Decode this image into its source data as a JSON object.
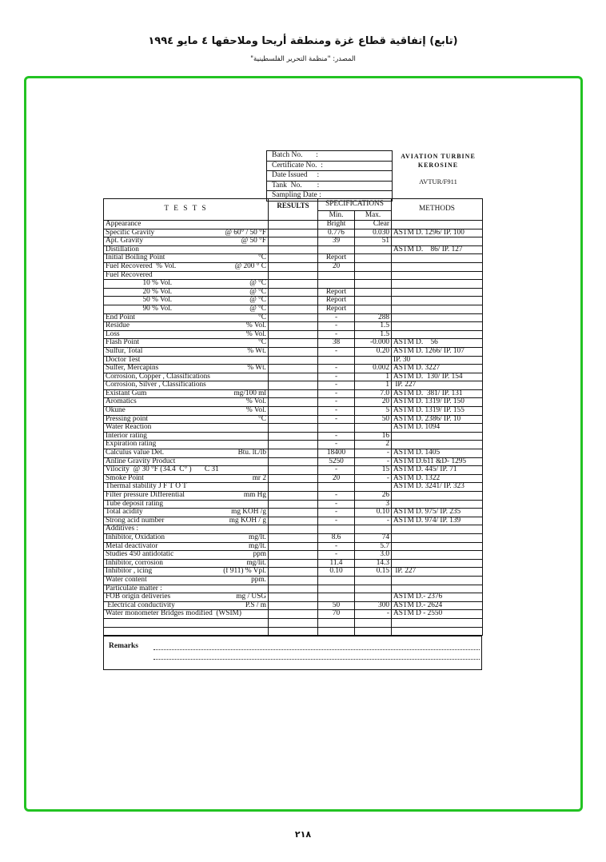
{
  "header": {
    "title": "(تابع) إتفاقية قطاع غزة ومنطقة أريحا وملاحقها ٤ مايو ١٩٩٤",
    "source": "المصدر: \"منظمة التحرير الفلسطينية\""
  },
  "info_box": [
    "Batch No.       :",
    "Certificate No.  :",
    "Date Issued     :",
    "Tank  No.        :",
    "Sampling Date :"
  ],
  "product": {
    "line1": "AVIATION TURBINE",
    "line2": "KEROSINE",
    "code": "AVTUR/F911"
  },
  "table": {
    "headers": {
      "tests": "T E S T S",
      "results": "RESULTS",
      "specifications": "SPECIFICATIONS",
      "min": "Min.",
      "max": "Max.",
      "methods": "METHODS"
    },
    "rows": [
      [
        "Appearance",
        "",
        "",
        "Bright",
        "Clear",
        ""
      ],
      [
        "Specific Gravity",
        "@ 60° / 50 °F",
        "",
        "0.776",
        "0.030",
        "ASTM D. 1296/ IP. 100"
      ],
      [
        "Apt. Gravity",
        "@ 50 °F",
        "",
        "39",
        "51",
        ""
      ],
      [
        "Distillation",
        "",
        "",
        "",
        "",
        "ASTM D.    86/ IP. 127"
      ],
      [
        "Initial Boiling Point",
        "°C",
        "",
        "Report",
        "",
        ""
      ],
      [
        "Fuel Recovered  % Vol.",
        "@ 200 ° C",
        "",
        "20",
        "",
        ""
      ],
      [
        "Fuel Recovered",
        "",
        "",
        "",
        "",
        ""
      ],
      [
        "                    10 % Vol.",
        "@ °C",
        "",
        "",
        "",
        ""
      ],
      [
        "                    20 % Vol.",
        "@ °C",
        "",
        "Report",
        "",
        ""
      ],
      [
        "                    50 % Vol.",
        "@ °C",
        "",
        "Report",
        "",
        ""
      ],
      [
        "                    90 % Vol.",
        "@ °C",
        "",
        "Report",
        "",
        ""
      ],
      [
        "End Point",
        "°C",
        "",
        "-",
        "288",
        ""
      ],
      [
        "Residue",
        "% Vol.",
        "",
        "-",
        "1.5",
        ""
      ],
      [
        "Loss",
        "% Vol.",
        "",
        "-",
        "1.5",
        ""
      ],
      [
        "Flash Point",
        "°C",
        "",
        "38",
        "-0.000",
        "ASTM D.    56"
      ],
      [
        "Sulfur, Total",
        "% Wt.",
        "",
        "-",
        "0.20",
        "ASTM D. 1266/ IP. 107"
      ],
      [
        "Doctor Test",
        "",
        "",
        "",
        "",
        "IP. 30"
      ],
      [
        "Sulfer, Mercapins",
        "% Wt.",
        "",
        "-",
        "0.002",
        "ASTM D. 3227"
      ],
      [
        "Corrosion, Copper , Classifications",
        "",
        "",
        "-",
        "1",
        "ASTM D.  130/ IP. 154"
      ],
      [
        "Corrosion, Silver , Classifications",
        "",
        "",
        "-",
        "1",
        " IP. 227"
      ],
      [
        "Existant Gum",
        "mg/100 ml",
        "",
        "-",
        "7.0",
        "ASTM D.  381/ IP. 131"
      ],
      [
        "Aromatics",
        "% Vol.",
        "",
        "-",
        "20",
        "ASTM D. 1319/ IP. 150"
      ],
      [
        "Okune",
        "% Vol.",
        "",
        "-",
        "5",
        "ASTM D. 1319/ IP. 155"
      ],
      [
        "Pressing point",
        "°C",
        "",
        "-",
        "50",
        "ASTM D. 2386/ IP. 10"
      ],
      [
        "Water Reaction",
        "",
        "",
        "",
        "",
        "ASTM D. 1094"
      ],
      [
        "Interior rating",
        "",
        "",
        "-",
        "16",
        ""
      ],
      [
        "Expiration rating",
        "",
        "",
        "-",
        "2",
        ""
      ],
      [
        "Calculus value Det.",
        "Btu. lt./lb",
        "",
        "18400",
        "-",
        "ASTM D. 1405"
      ],
      [
        "Anline Gravity Product",
        "",
        "",
        "5250",
        "-",
        "ASTM D.611 &D- 1295"
      ],
      [
        "Vilocity  @ 30 °F (34.4  C° )       C 31",
        "",
        "",
        "-",
        "15",
        "ASTM D. 445/ IP. 71"
      ],
      [
        "Smoke Point",
        "mr 2",
        "",
        "20",
        "-",
        "ASTM D. 1322"
      ],
      [
        "Thermal stability J F T O T",
        "",
        "",
        "",
        "",
        "ASTM D. 3241/ IP. 323"
      ],
      [
        "Filter pressure Differential",
        "mm Hg",
        "",
        "-",
        "26",
        ""
      ],
      [
        "Tube deposit rating",
        "",
        "",
        "-",
        "3",
        ""
      ],
      [
        "Total acidity",
        "mg KOH /g",
        "",
        "-",
        "0.10",
        "ASTM D. 975/ IP. 235"
      ],
      [
        "Strong acid number",
        "mg KOH / g",
        "",
        "-",
        "-",
        "ASTM D. 974/ IP. 139"
      ],
      [
        "Additives :",
        "",
        "",
        "",
        "",
        ""
      ],
      [
        "Inhibitor, Oxidation",
        "mg/lt.",
        "",
        "8.6",
        "74",
        ""
      ],
      [
        "Metal deactivator",
        "mg/lt.",
        "",
        "-",
        "5.7",
        ""
      ],
      [
        "Studies 450 antidotatic",
        "ppm",
        "",
        "-",
        "3.0",
        ""
      ],
      [
        "Inhibitor, corrosion",
        "mg/lit.",
        "",
        "11.4",
        "14.3",
        ""
      ],
      [
        "Inhibitor , icing",
        "(f 911) % Vpl.",
        "",
        "0.10",
        "0.15",
        " IP. 227"
      ],
      [
        "Water content",
        "ppm.",
        "",
        "",
        "",
        ""
      ],
      [
        "Particulate matter :",
        "",
        "",
        "",
        "",
        ""
      ],
      [
        "FOB origin deliveries",
        "mg / USG",
        "",
        "",
        "",
        "ASTM D.- 2376"
      ],
      [
        " Electrical conductivity",
        "P.S / m",
        "",
        "50",
        "300",
        "ASTM D.- 2624"
      ],
      [
        "Water monometer Bridges modified  (WSIM)",
        "",
        "",
        "70",
        "-",
        "ASTM D - 2550"
      ],
      [
        "",
        "",
        "",
        "",
        "",
        ""
      ],
      [
        "",
        "",
        "",
        "",
        "",
        ""
      ]
    ]
  },
  "remarks": {
    "label": "Remarks"
  },
  "page_number": "٢١٨",
  "colors": {
    "frame": "#22c322"
  }
}
